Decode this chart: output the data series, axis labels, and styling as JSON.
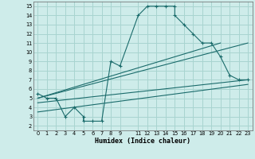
{
  "xlabel": "Humidex (Indice chaleur)",
  "xlim": [
    -0.5,
    23.5
  ],
  "ylim": [
    1.5,
    15.5
  ],
  "xticks": [
    0,
    1,
    2,
    3,
    4,
    5,
    6,
    7,
    8,
    9,
    11,
    12,
    13,
    14,
    15,
    16,
    17,
    18,
    19,
    20,
    21,
    22,
    23
  ],
  "yticks": [
    2,
    3,
    4,
    5,
    6,
    7,
    8,
    9,
    10,
    11,
    12,
    13,
    14,
    15
  ],
  "bg_color": "#ceecea",
  "grid_color": "#a8d4d0",
  "line_color": "#1a6b6b",
  "main_x": [
    0,
    1,
    2,
    3,
    4,
    5,
    5,
    6,
    7,
    8,
    9,
    11,
    12,
    13,
    14,
    15,
    15,
    16,
    17,
    18,
    19,
    20,
    21,
    22,
    23
  ],
  "main_y": [
    5.5,
    5,
    5,
    3,
    4,
    3,
    2.5,
    2.5,
    2.5,
    9,
    8.5,
    14,
    15,
    15,
    15,
    15,
    14,
    13,
    12,
    11,
    11,
    9.5,
    7.5,
    7,
    7
  ],
  "line1_x": [
    0,
    20
  ],
  "line1_y": [
    5,
    11
  ],
  "line2_x": [
    0,
    23
  ],
  "line2_y": [
    5,
    11
  ],
  "line3_x": [
    0,
    23
  ],
  "line3_y": [
    4.5,
    7
  ],
  "line4_x": [
    0,
    23
  ],
  "line4_y": [
    3.5,
    6.5
  ]
}
